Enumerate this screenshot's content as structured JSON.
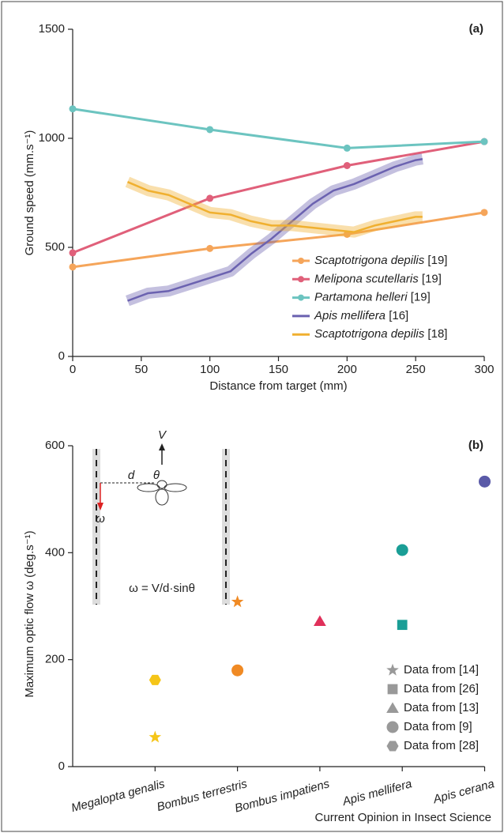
{
  "chart_data": [
    {
      "type": "line",
      "panel": "(a)",
      "x_label": "Distance from target (mm)",
      "y_label": "Ground speed (mm.s⁻¹)",
      "xlim": [
        0,
        300
      ],
      "xticks": [
        0,
        50,
        100,
        150,
        200,
        250,
        300
      ],
      "ylim": [
        0,
        1500
      ],
      "yticks": [
        0,
        500,
        1000,
        1500
      ],
      "series": [
        {
          "name": "Scaptotrigona depilis [19]",
          "color": "#f5a55a",
          "markers": true,
          "x": [
            0,
            100,
            200,
            300
          ],
          "values": [
            410,
            495,
            560,
            660
          ]
        },
        {
          "name": "Melipona scutellaris [19]",
          "color": "#e0607a",
          "markers": true,
          "x": [
            0,
            100,
            200,
            300
          ],
          "values": [
            475,
            725,
            875,
            985
          ]
        },
        {
          "name": "Partamona helleri [19]",
          "color": "#6cc4c0",
          "markers": true,
          "x": [
            0,
            100,
            200,
            300
          ],
          "values": [
            1135,
            1040,
            955,
            985
          ]
        },
        {
          "name": "Apis mellifera [16]",
          "color": "#6b62b0",
          "markers": false,
          "x": [
            40,
            55,
            70,
            85,
            100,
            115,
            130,
            145,
            160,
            175,
            190,
            205,
            220,
            235,
            250,
            255
          ],
          "values": [
            255,
            290,
            300,
            330,
            360,
            390,
            470,
            540,
            620,
            700,
            760,
            790,
            830,
            870,
            900,
            905
          ]
        },
        {
          "name": "Scaptotrigona depilis [18]",
          "color": "#f0b030",
          "markers": false,
          "x": [
            40,
            55,
            70,
            85,
            100,
            115,
            130,
            145,
            160,
            175,
            190,
            205,
            220,
            235,
            250,
            255
          ],
          "values": [
            800,
            760,
            740,
            700,
            660,
            650,
            620,
            600,
            600,
            590,
            580,
            570,
            600,
            620,
            640,
            640
          ]
        }
      ]
    },
    {
      "type": "scatter",
      "panel": "(b)",
      "y_label": "Maximum optic flow ω (deg.s⁻¹)",
      "categories": [
        "Megalopta genalis",
        "Bombus terrestris",
        "Bombus impatiens",
        "Apis mellifera",
        "Apis cerana"
      ],
      "category_colors": [
        "#f5c518",
        "#f08a24",
        "#e0305a",
        "#1a9e96",
        "#5a5aa8"
      ],
      "ylim": [
        0,
        600
      ],
      "yticks": [
        0,
        200,
        400,
        600
      ],
      "legend_color": "#999999",
      "series": [
        {
          "name": "Data from [14]",
          "marker": "star",
          "values": [
            55,
            308,
            null,
            null,
            null
          ]
        },
        {
          "name": "Data from [26]",
          "marker": "square",
          "values": [
            null,
            null,
            null,
            265,
            null
          ]
        },
        {
          "name": "Data from [13]",
          "marker": "triangle",
          "values": [
            null,
            null,
            272,
            null,
            null
          ]
        },
        {
          "name": "Data from [9]",
          "marker": "circle",
          "values": [
            null,
            180,
            null,
            405,
            533
          ]
        },
        {
          "name": "Data from [28]",
          "marker": "hexagon",
          "values": [
            162,
            null,
            null,
            null,
            null
          ]
        }
      ],
      "annotations": [
        "V",
        "d",
        "θ",
        "ω",
        "ω = V/d·sinθ"
      ]
    }
  ],
  "source": "Current Opinion in Insect Science"
}
